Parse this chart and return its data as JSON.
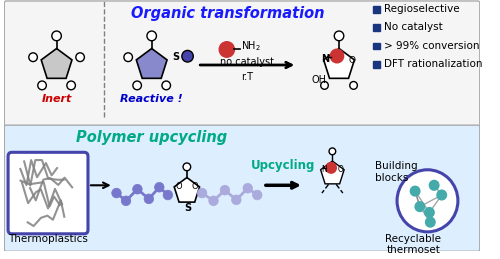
{
  "title_top": "Organic transformation",
  "title_bottom": "Polymer upcycling",
  "label_inert": "Inert",
  "label_reactive": "Reactive !",
  "label_no_catalyst": "no catalyst",
  "label_rt": "r.T",
  "label_upcycling": "Upcycling",
  "label_thermoplastics": "Thermoplastics",
  "label_building_blocks": "Building\nblocks",
  "label_recyclable": "Recyclable\nthermoset",
  "bullet_points": [
    "Regioselective",
    "No catalyst",
    "> 99% conversion",
    "DFT rationalization"
  ],
  "color_inert_label": "#cc0000",
  "color_reactive_label": "#0000cc",
  "color_title_top": "#1a1aff",
  "color_title_bottom": "#00aa88",
  "color_upcycling": "#00aa88",
  "color_bullet": "#1a3580",
  "color_pentagon_inert": "#c8c8c8",
  "color_pentagon_reactive": "#8888cc",
  "color_red_circle": "#cc3333",
  "color_blue_circle": "#4444aa",
  "color_product_ring": "#cc3333",
  "color_arrow": "#000000",
  "color_polymer_blue": "#7777cc",
  "color_polymer_blue_light": "#aaaadd",
  "color_thermoset_teal": "#44aaaa",
  "bg_top": "#f5f5f5",
  "bg_bottom": "#ddeeff",
  "border_color": "#aaaaaa",
  "fig_width": 5.0,
  "fig_height": 2.59
}
